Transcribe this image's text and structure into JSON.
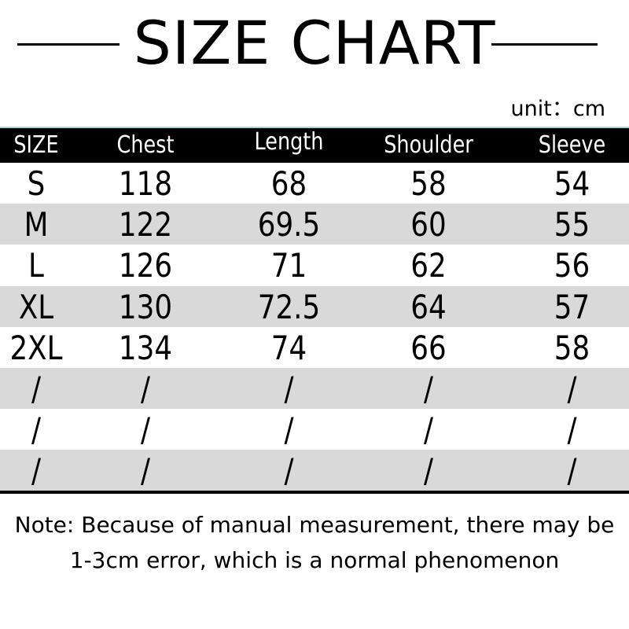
{
  "title": "SIZE CHART",
  "unit": "unit：cm",
  "headers": [
    "SIZE",
    "Chest",
    "Length",
    "Shoulder",
    "Sleeve"
  ],
  "rows": [
    [
      "S",
      "118",
      "68",
      "58",
      "54"
    ],
    [
      "M",
      "122",
      "69.5",
      "60",
      "55"
    ],
    [
      "L",
      "126",
      "71",
      "62",
      "56"
    ],
    [
      "XL",
      "130",
      "72.5",
      "64",
      "57"
    ],
    [
      "2XL",
      "134",
      "74",
      "66",
      "58"
    ],
    [
      "/",
      "/",
      "/",
      "/",
      "/"
    ],
    [
      "/",
      "/",
      "/",
      "/",
      "/"
    ],
    [
      "/",
      "/",
      "/",
      "/",
      "/"
    ]
  ],
  "note": [
    "Note: Because of manual measurement, there may be",
    "1-3cm error, which is a normal phenomenon"
  ],
  "colors": {
    "header_bg": "#000000",
    "stripe": "#d9d9d9",
    "accent_line": "#a9d4d2"
  }
}
